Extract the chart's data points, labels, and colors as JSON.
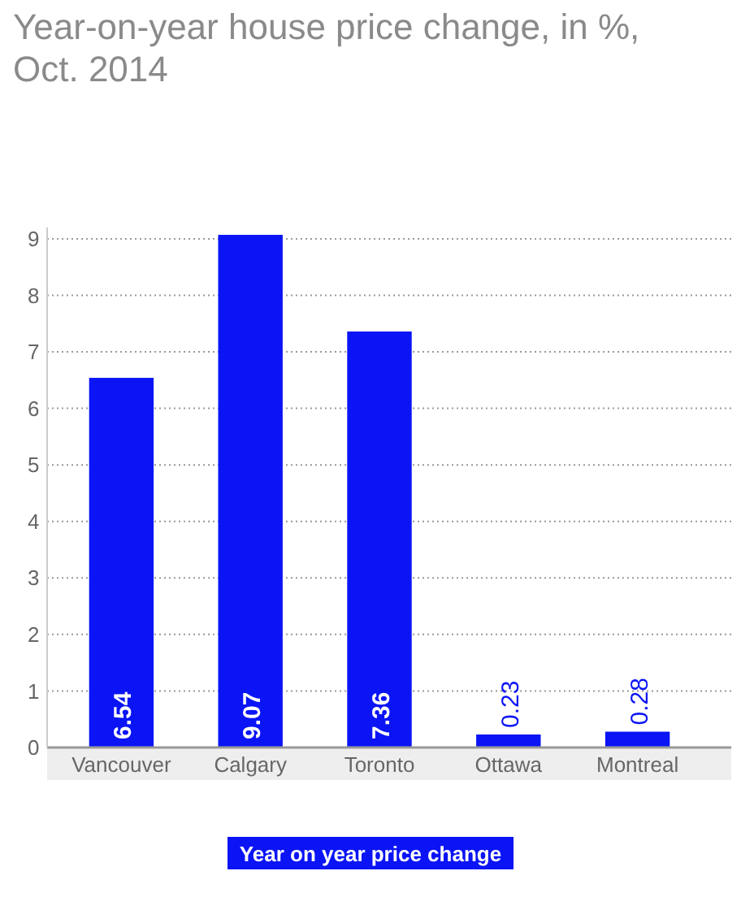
{
  "chart_data": {
    "type": "bar",
    "title": "Year-on-year house price change, in %, Oct. 2014",
    "categories": [
      "Vancouver",
      "Calgary",
      "Toronto",
      "Ottawa",
      "Montreal"
    ],
    "series": [
      {
        "name": "Year on year price change",
        "color": "#0a14f5",
        "values": [
          6.54,
          9.07,
          7.36,
          0.23,
          0.28
        ]
      }
    ],
    "ylim": [
      0,
      9.2
    ],
    "yticks": [
      0,
      1,
      2,
      3,
      4,
      5,
      6,
      7,
      8,
      9
    ],
    "grid": "y",
    "legend": "bottom",
    "data_labels": true
  }
}
